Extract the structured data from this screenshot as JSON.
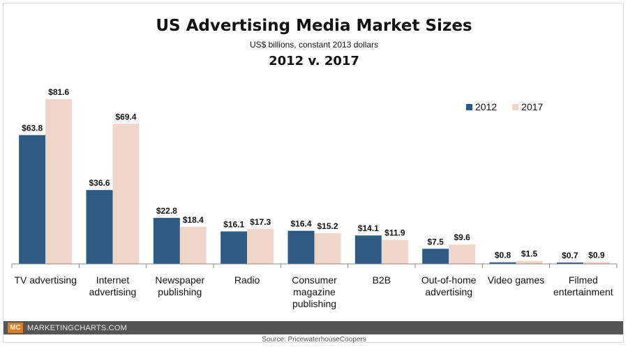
{
  "title": "US Advertising Media Market Sizes",
  "subtitle": "US$ billions, constant 2013 dollars",
  "subtitle2": "2012 v. 2017",
  "legend": [
    {
      "label": "2012",
      "color": "#2e5b84"
    },
    {
      "label": "2017",
      "color": "#efd6c8"
    }
  ],
  "footer": {
    "logo": "MC",
    "brand": "MARKETINGCHARTS.COM",
    "source": "Source: PricewaterhouseCoopers"
  },
  "chart_data": {
    "type": "bar",
    "title": "US Advertising Media Market Sizes",
    "subtitle": "US$ billions, constant 2013 dollars",
    "categories": [
      [
        "TV advertising"
      ],
      [
        "Internet",
        "advertising"
      ],
      [
        "Newspaper",
        "publishing"
      ],
      [
        "Radio"
      ],
      [
        "Consumer",
        "magazine",
        "publishing"
      ],
      [
        "B2B"
      ],
      [
        "Out-of-home",
        "advertising"
      ],
      [
        "Video games"
      ],
      [
        "Filmed",
        "entertainment"
      ]
    ],
    "series": [
      {
        "name": "2012",
        "color": "#2e5b84",
        "values": [
          63.8,
          36.6,
          22.8,
          16.1,
          16.4,
          14.1,
          7.5,
          0.8,
          0.7
        ],
        "labels": [
          "$63.8",
          "$36.6",
          "$22.8",
          "$16.1",
          "$16.4",
          "$14.1",
          "$7.5",
          "$0.8",
          "$0.7"
        ]
      },
      {
        "name": "2017",
        "color": "#efd6c8",
        "values": [
          81.6,
          69.4,
          18.4,
          17.3,
          15.2,
          11.9,
          9.6,
          1.5,
          0.9
        ],
        "labels": [
          "$81.6",
          "$69.4",
          "$18.4",
          "$17.3",
          "$15.2",
          "$11.9",
          "$9.6",
          "$1.5",
          "$0.9"
        ]
      }
    ],
    "ylim": [
      0,
      90
    ],
    "grid": false,
    "legend_position": "top-right"
  }
}
